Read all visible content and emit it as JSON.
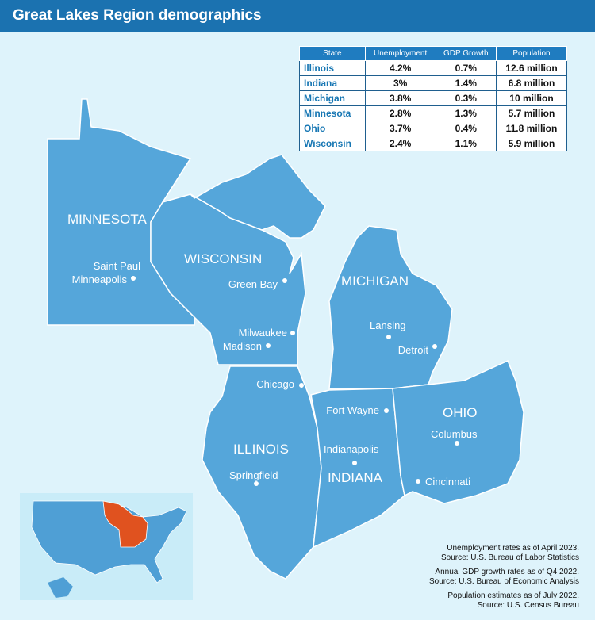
{
  "header": {
    "title": "Great Lakes Region demographics"
  },
  "table": {
    "columns": [
      "State",
      "Unemployment",
      "GDP Growth",
      "Population"
    ],
    "rows": [
      [
        "Illinois",
        "4.2%",
        "0.7%",
        "12.6 million"
      ],
      [
        "Indiana",
        "3%",
        "1.4%",
        "6.8 million"
      ],
      [
        "Michigan",
        "3.8%",
        "0.3%",
        "10 million"
      ],
      [
        "Minnesota",
        "2.8%",
        "1.3%",
        "5.7 million"
      ],
      [
        "Ohio",
        "3.7%",
        "0.4%",
        "11.8 million"
      ],
      [
        "Wisconsin",
        "2.4%",
        "1.1%",
        "5.9 million"
      ]
    ]
  },
  "map": {
    "states": [
      "MINNESOTA",
      "WISCONSIN",
      "MICHIGAN",
      "ILLINOIS",
      "INDIANA",
      "OHIO"
    ],
    "cities": [
      "Saint Paul",
      "Minneapolis",
      "Green Bay",
      "Milwaukee",
      "Madison",
      "Lansing",
      "Detroit",
      "Chicago",
      "Fort Wayne",
      "Indianapolis",
      "Columbus",
      "Springfield",
      "Cincinnati"
    ]
  },
  "notes": [
    [
      "Unemployment rates as of April 2023.",
      "Source: U.S. Bureau of Labor Statistics"
    ],
    [
      "Annual GDP growth rates as of Q4 2022.",
      "Source: U.S. Bureau of Economic Analysis"
    ],
    [
      "Population estimates as of July 2022.",
      "Source: U.S. Census Bureau"
    ]
  ]
}
